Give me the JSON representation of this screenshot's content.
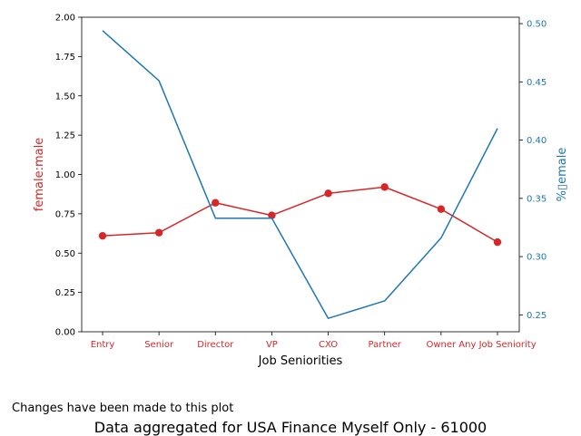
{
  "chart_data": {
    "type": "line",
    "xlabel": "Job Seniorities",
    "categories": [
      "Entry",
      "Senior",
      "Director",
      "VP",
      "CXO",
      "Partner",
      "Owner",
      "Any Job Seniority"
    ],
    "left_axis": {
      "label": "female:male",
      "color": "#d62728",
      "ylim": [
        0.0,
        2.0
      ],
      "ticks": [
        "0.00",
        "0.25",
        "0.50",
        "0.75",
        "1.00",
        "1.25",
        "1.50",
        "1.75",
        "2.00"
      ]
    },
    "right_axis": {
      "label": "%▯emale",
      "color": "#1f77b4",
      "ylim": [
        0.2355,
        0.5055
      ],
      "ticks": [
        "0.25",
        "0.30",
        "0.35",
        "0.40",
        "0.45",
        "0.50"
      ]
    },
    "series": [
      {
        "axis": "left",
        "color": "#d62728",
        "marker": "circle",
        "values": [
          0.61,
          0.63,
          0.82,
          0.74,
          0.88,
          0.92,
          0.78,
          0.57
        ]
      },
      {
        "axis": "right",
        "color": "#1f77b4",
        "marker": "none",
        "values": [
          0.494,
          0.451,
          0.333,
          0.333,
          0.247,
          0.262,
          0.316,
          0.41
        ]
      }
    ],
    "grid": false
  },
  "note": "Changes have been made to this plot",
  "footer": "Data aggregated for USA Finance Myself Only - 61000"
}
